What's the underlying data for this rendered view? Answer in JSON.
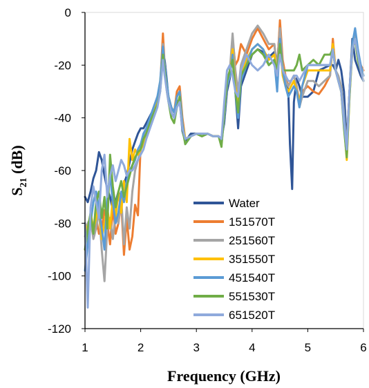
{
  "chart_data": {
    "type": "line",
    "xlabel": "Frequency (GHz)",
    "ylabel_main": "S",
    "ylabel_sub": "21",
    "ylabel_unit": " (dB)",
    "xlim": [
      1,
      6
    ],
    "ylim": [
      -120,
      0
    ],
    "x_ticks": [
      1,
      2,
      3,
      4,
      5,
      6
    ],
    "y_ticks": [
      0,
      -20,
      -40,
      -60,
      -80,
      -100,
      -120
    ],
    "grid": false,
    "legend_position": "bottom-right",
    "series": [
      {
        "name": "Water",
        "color": "#2f5597",
        "x": [
          1.0,
          1.05,
          1.1,
          1.15,
          1.2,
          1.25,
          1.3,
          1.35,
          1.4,
          1.45,
          1.5,
          1.55,
          1.6,
          1.65,
          1.7,
          1.75,
          1.8,
          1.85,
          1.9,
          1.95,
          2.0,
          2.05,
          2.1,
          2.2,
          2.3,
          2.35,
          2.4,
          2.43,
          2.47,
          2.5,
          2.55,
          2.6,
          2.65,
          2.7,
          2.75,
          2.8,
          2.9,
          3.0,
          3.1,
          3.2,
          3.3,
          3.4,
          3.45,
          3.5,
          3.55,
          3.6,
          3.65,
          3.7,
          3.75,
          3.8,
          3.9,
          4.0,
          4.1,
          4.2,
          4.3,
          4.4,
          4.45,
          4.5,
          4.55,
          4.6,
          4.65,
          4.68,
          4.72,
          4.75,
          4.8,
          4.85,
          4.9,
          5.0,
          5.1,
          5.2,
          5.3,
          5.4,
          5.45,
          5.5,
          5.55,
          5.6,
          5.65,
          5.7,
          5.75,
          5.8,
          5.85,
          5.9,
          5.95,
          6.0
        ],
        "values": [
          -70,
          -72,
          -68,
          -63,
          -60,
          -53,
          -56,
          -62,
          -67,
          -70,
          -75,
          -72,
          -68,
          -73,
          -65,
          -62,
          -57,
          -52,
          -49,
          -46,
          -44,
          -44,
          -42,
          -38,
          -32,
          -28,
          -16,
          -18,
          -26,
          -33,
          -38,
          -40,
          -34,
          -33,
          -45,
          -49,
          -46,
          -46,
          -47,
          -46,
          -47,
          -47,
          -48,
          -42,
          -30,
          -25,
          -15,
          -30,
          -44,
          -28,
          -22,
          -16,
          -14,
          -15,
          -17,
          -15,
          -20,
          -5,
          -20,
          -25,
          -30,
          -50,
          -67,
          -34,
          -25,
          -28,
          -32,
          -32,
          -30,
          -22,
          -21,
          -20,
          -20,
          -22,
          -18,
          -22,
          -30,
          -50,
          -30,
          -10,
          -18,
          -21,
          -24,
          -26
        ]
      },
      {
        "name": "151570T",
        "color": "#ed7d31",
        "x": [
          1.0,
          1.05,
          1.1,
          1.15,
          1.2,
          1.25,
          1.3,
          1.35,
          1.4,
          1.45,
          1.5,
          1.55,
          1.6,
          1.65,
          1.7,
          1.75,
          1.8,
          1.85,
          1.9,
          1.95,
          2.0,
          2.05,
          2.1,
          2.2,
          2.3,
          2.35,
          2.4,
          2.43,
          2.47,
          2.5,
          2.55,
          2.6,
          2.65,
          2.7,
          2.75,
          2.8,
          2.9,
          3.0,
          3.1,
          3.2,
          3.3,
          3.4,
          3.45,
          3.5,
          3.55,
          3.6,
          3.65,
          3.7,
          3.75,
          3.8,
          3.9,
          4.0,
          4.1,
          4.2,
          4.3,
          4.4,
          4.45,
          4.5,
          4.55,
          4.6,
          4.65,
          4.7,
          4.75,
          4.8,
          4.85,
          4.9,
          5.0,
          5.1,
          5.2,
          5.3,
          5.4,
          5.45,
          5.5,
          5.55,
          5.6,
          5.65,
          5.7,
          5.75,
          5.8,
          5.85,
          5.9,
          5.95,
          6.0
        ],
        "values": [
          -90,
          -88,
          -80,
          -85,
          -78,
          -84,
          -82,
          -75,
          -80,
          -88,
          -74,
          -84,
          -80,
          -72,
          -92,
          -78,
          -90,
          -85,
          -73,
          -77,
          -50,
          -48,
          -45,
          -40,
          -33,
          -28,
          -8,
          -20,
          -28,
          -33,
          -36,
          -38,
          -30,
          -28,
          -40,
          -48,
          -47,
          -46,
          -47,
          -46,
          -47,
          -47,
          -49,
          -40,
          -28,
          -24,
          -10,
          -20,
          -18,
          -12,
          -16,
          -10,
          -6,
          -10,
          -14,
          -12,
          -22,
          -3,
          -18,
          -24,
          -28,
          -26,
          -24,
          -28,
          -34,
          -30,
          -28,
          -30,
          -31,
          -28,
          -24,
          -10,
          -22,
          -25,
          -28,
          -40,
          -50,
          -30,
          -12,
          -8,
          -15,
          -20,
          -22
        ]
      },
      {
        "name": "251560T",
        "color": "#a5a5a5",
        "x": [
          1.0,
          1.05,
          1.1,
          1.15,
          1.2,
          1.25,
          1.3,
          1.35,
          1.4,
          1.45,
          1.5,
          1.55,
          1.6,
          1.65,
          1.7,
          1.75,
          1.8,
          1.85,
          1.9,
          1.95,
          2.0,
          2.05,
          2.1,
          2.2,
          2.3,
          2.35,
          2.4,
          2.43,
          2.47,
          2.5,
          2.55,
          2.6,
          2.65,
          2.7,
          2.75,
          2.8,
          2.9,
          3.0,
          3.1,
          3.2,
          3.3,
          3.4,
          3.45,
          3.5,
          3.55,
          3.6,
          3.65,
          3.7,
          3.75,
          3.8,
          3.9,
          4.0,
          4.1,
          4.2,
          4.3,
          4.4,
          4.45,
          4.5,
          4.55,
          4.6,
          4.65,
          4.7,
          4.75,
          4.8,
          4.85,
          4.9,
          5.0,
          5.1,
          5.2,
          5.3,
          5.4,
          5.45,
          5.5,
          5.55,
          5.6,
          5.65,
          5.7,
          5.75,
          5.8,
          5.85,
          5.9,
          5.95,
          6.0
        ],
        "values": [
          -85,
          -80,
          -78,
          -86,
          -82,
          -75,
          -90,
          -102,
          -82,
          -78,
          -86,
          -76,
          -80,
          -70,
          -88,
          -74,
          -82,
          -68,
          -60,
          -56,
          -52,
          -48,
          -45,
          -40,
          -34,
          -28,
          -12,
          -20,
          -28,
          -32,
          -36,
          -38,
          -32,
          -30,
          -42,
          -48,
          -47,
          -46,
          -46,
          -46,
          -47,
          -47,
          -48,
          -40,
          -26,
          -22,
          -8,
          -22,
          -30,
          -20,
          -14,
          -8,
          -5,
          -8,
          -12,
          -12,
          -22,
          -6,
          -20,
          -26,
          -28,
          -26,
          -24,
          -28,
          -36,
          -32,
          -26,
          -26,
          -28,
          -26,
          -24,
          -12,
          -22,
          -24,
          -28,
          -38,
          -52,
          -30,
          -14,
          -8,
          -16,
          -20,
          -24
        ]
      },
      {
        "name": "351550T",
        "color": "#ffc000",
        "x": [
          1.0,
          1.05,
          1.1,
          1.15,
          1.2,
          1.25,
          1.3,
          1.35,
          1.4,
          1.45,
          1.5,
          1.55,
          1.6,
          1.65,
          1.7,
          1.75,
          1.8,
          1.85,
          1.9,
          1.95,
          2.0,
          2.05,
          2.1,
          2.2,
          2.3,
          2.35,
          2.4,
          2.43,
          2.47,
          2.5,
          2.55,
          2.6,
          2.65,
          2.7,
          2.75,
          2.8,
          2.9,
          3.0,
          3.1,
          3.2,
          3.3,
          3.4,
          3.45,
          3.5,
          3.55,
          3.6,
          3.65,
          3.7,
          3.75,
          3.8,
          3.9,
          4.0,
          4.1,
          4.2,
          4.3,
          4.4,
          4.45,
          4.5,
          4.55,
          4.6,
          4.65,
          4.7,
          4.75,
          4.8,
          4.85,
          4.9,
          5.0,
          5.1,
          5.2,
          5.3,
          5.4,
          5.45,
          5.5,
          5.55,
          5.6,
          5.65,
          5.7,
          5.75,
          5.8,
          5.85,
          5.9,
          5.95,
          6.0
        ],
        "values": [
          -80,
          -84,
          -76,
          -82,
          -78,
          -72,
          -86,
          -80,
          -74,
          -82,
          -70,
          -78,
          -68,
          -76,
          -64,
          -72,
          -48,
          -56,
          -52,
          -54,
          -52,
          -50,
          -46,
          -40,
          -34,
          -28,
          -14,
          -20,
          -28,
          -32,
          -36,
          -38,
          -32,
          -30,
          -42,
          -48,
          -47,
          -46,
          -47,
          -46,
          -47,
          -47,
          -49,
          -40,
          -28,
          -24,
          -14,
          -28,
          -34,
          -24,
          -18,
          -14,
          -12,
          -14,
          -18,
          -16,
          -24,
          -12,
          -24,
          -28,
          -30,
          -28,
          -26,
          -30,
          -34,
          -28,
          -22,
          -22,
          -22,
          -22,
          -22,
          -12,
          -22,
          -26,
          -30,
          -42,
          -56,
          -32,
          -14,
          -10,
          -18,
          -22,
          -26
        ]
      },
      {
        "name": "451540T",
        "color": "#5b9bd5",
        "x": [
          1.0,
          1.05,
          1.1,
          1.15,
          1.2,
          1.25,
          1.3,
          1.35,
          1.4,
          1.45,
          1.5,
          1.55,
          1.6,
          1.65,
          1.7,
          1.75,
          1.8,
          1.85,
          1.9,
          1.95,
          2.0,
          2.05,
          2.1,
          2.2,
          2.3,
          2.35,
          2.4,
          2.43,
          2.47,
          2.5,
          2.55,
          2.6,
          2.65,
          2.7,
          2.75,
          2.8,
          2.9,
          3.0,
          3.1,
          3.2,
          3.3,
          3.4,
          3.45,
          3.5,
          3.55,
          3.6,
          3.65,
          3.7,
          3.75,
          3.8,
          3.9,
          4.0,
          4.1,
          4.2,
          4.3,
          4.4,
          4.45,
          4.5,
          4.55,
          4.6,
          4.65,
          4.7,
          4.75,
          4.8,
          4.85,
          4.9,
          5.0,
          5.1,
          5.2,
          5.3,
          5.4,
          5.45,
          5.5,
          5.55,
          5.6,
          5.65,
          5.7,
          5.75,
          5.8,
          5.85,
          5.9,
          5.95,
          6.0
        ],
        "values": [
          -98,
          -88,
          -80,
          -72,
          -68,
          -74,
          -82,
          -90,
          -70,
          -62,
          -72,
          -80,
          -76,
          -68,
          -72,
          -64,
          -60,
          -58,
          -56,
          -52,
          -50,
          -46,
          -44,
          -38,
          -32,
          -26,
          -13,
          -20,
          -27,
          -32,
          -36,
          -38,
          -32,
          -30,
          -42,
          -50,
          -47,
          -46,
          -47,
          -46,
          -47,
          -47,
          -50,
          -40,
          -28,
          -24,
          -16,
          -30,
          -40,
          -26,
          -20,
          -14,
          -12,
          -14,
          -20,
          -18,
          -30,
          -10,
          -22,
          -28,
          -32,
          -30,
          -28,
          -30,
          -36,
          -28,
          -20,
          -20,
          -20,
          -20,
          -20,
          -14,
          -22,
          -26,
          -30,
          -40,
          -52,
          -30,
          -12,
          -6,
          -14,
          -20,
          -24
        ]
      },
      {
        "name": "551530T",
        "color": "#70ad47",
        "x": [
          1.0,
          1.05,
          1.1,
          1.15,
          1.2,
          1.25,
          1.3,
          1.35,
          1.4,
          1.45,
          1.5,
          1.55,
          1.6,
          1.65,
          1.7,
          1.75,
          1.8,
          1.85,
          1.9,
          1.95,
          2.0,
          2.05,
          2.1,
          2.2,
          2.3,
          2.35,
          2.4,
          2.43,
          2.47,
          2.5,
          2.55,
          2.6,
          2.65,
          2.7,
          2.75,
          2.8,
          2.9,
          3.0,
          3.1,
          3.2,
          3.3,
          3.4,
          3.45,
          3.5,
          3.55,
          3.6,
          3.65,
          3.7,
          3.75,
          3.8,
          3.9,
          4.0,
          4.1,
          4.2,
          4.3,
          4.4,
          4.45,
          4.5,
          4.55,
          4.6,
          4.65,
          4.7,
          4.75,
          4.8,
          4.85,
          4.9,
          5.0,
          5.1,
          5.2,
          5.3,
          5.4,
          5.45,
          5.5,
          5.55,
          5.6,
          5.65,
          5.7,
          5.75,
          5.8,
          5.85,
          5.9,
          5.95,
          6.0
        ],
        "values": [
          -90,
          -82,
          -76,
          -84,
          -72,
          -68,
          -78,
          -70,
          -82,
          -54,
          -66,
          -74,
          -68,
          -64,
          -70,
          -66,
          -62,
          -58,
          -55,
          -53,
          -52,
          -48,
          -46,
          -40,
          -35,
          -30,
          -16,
          -22,
          -30,
          -34,
          -40,
          -42,
          -36,
          -32,
          -44,
          -50,
          -47,
          -46,
          -47,
          -46,
          -47,
          -47,
          -51,
          -38,
          -26,
          -22,
          -18,
          -30,
          -38,
          -24,
          -20,
          -16,
          -14,
          -16,
          -20,
          -18,
          -22,
          -12,
          -22,
          -22,
          -22,
          -22,
          -22,
          -20,
          -16,
          -22,
          -20,
          -18,
          -20,
          -16,
          -16,
          -14,
          -22,
          -26,
          -30,
          -44,
          -55,
          -32,
          -14,
          -10,
          -18,
          -22,
          -26
        ]
      },
      {
        "name": "651520T",
        "color": "#8faadc",
        "x": [
          1.0,
          1.05,
          1.1,
          1.15,
          1.2,
          1.25,
          1.3,
          1.35,
          1.4,
          1.45,
          1.5,
          1.55,
          1.6,
          1.65,
          1.7,
          1.75,
          1.8,
          1.85,
          1.9,
          1.95,
          2.0,
          2.05,
          2.1,
          2.2,
          2.3,
          2.35,
          2.4,
          2.43,
          2.47,
          2.5,
          2.55,
          2.6,
          2.65,
          2.7,
          2.75,
          2.8,
          2.9,
          3.0,
          3.1,
          3.2,
          3.3,
          3.4,
          3.45,
          3.5,
          3.55,
          3.6,
          3.65,
          3.7,
          3.75,
          3.8,
          3.9,
          4.0,
          4.1,
          4.2,
          4.3,
          4.4,
          4.45,
          4.5,
          4.55,
          4.6,
          4.65,
          4.7,
          4.75,
          4.8,
          4.85,
          4.9,
          5.0,
          5.1,
          5.2,
          5.3,
          5.4,
          5.45,
          5.5,
          5.55,
          5.6,
          5.65,
          5.7,
          5.75,
          5.8,
          5.85,
          5.9,
          5.95,
          6.0
        ],
        "values": [
          -80,
          -112,
          -74,
          -66,
          -72,
          -78,
          -60,
          -54,
          -70,
          -62,
          -58,
          -64,
          -60,
          -56,
          -58,
          -62,
          -60,
          -60,
          -58,
          -56,
          -54,
          -52,
          -48,
          -42,
          -36,
          -30,
          -18,
          -24,
          -30,
          -34,
          -38,
          -40,
          -36,
          -34,
          -44,
          -48,
          -47,
          -46,
          -46,
          -46,
          -47,
          -47,
          -48,
          -34,
          -22,
          -20,
          -24,
          -30,
          -32,
          -22,
          -16,
          -20,
          -22,
          -20,
          -16,
          -20,
          -24,
          -16,
          -22,
          -24,
          -26,
          -26,
          -24,
          -24,
          -26,
          -24,
          -20,
          -20,
          -20,
          -20,
          -20,
          -14,
          -22,
          -26,
          -30,
          -42,
          -52,
          -30,
          -14,
          -10,
          -16,
          -22,
          -26
        ]
      }
    ]
  }
}
